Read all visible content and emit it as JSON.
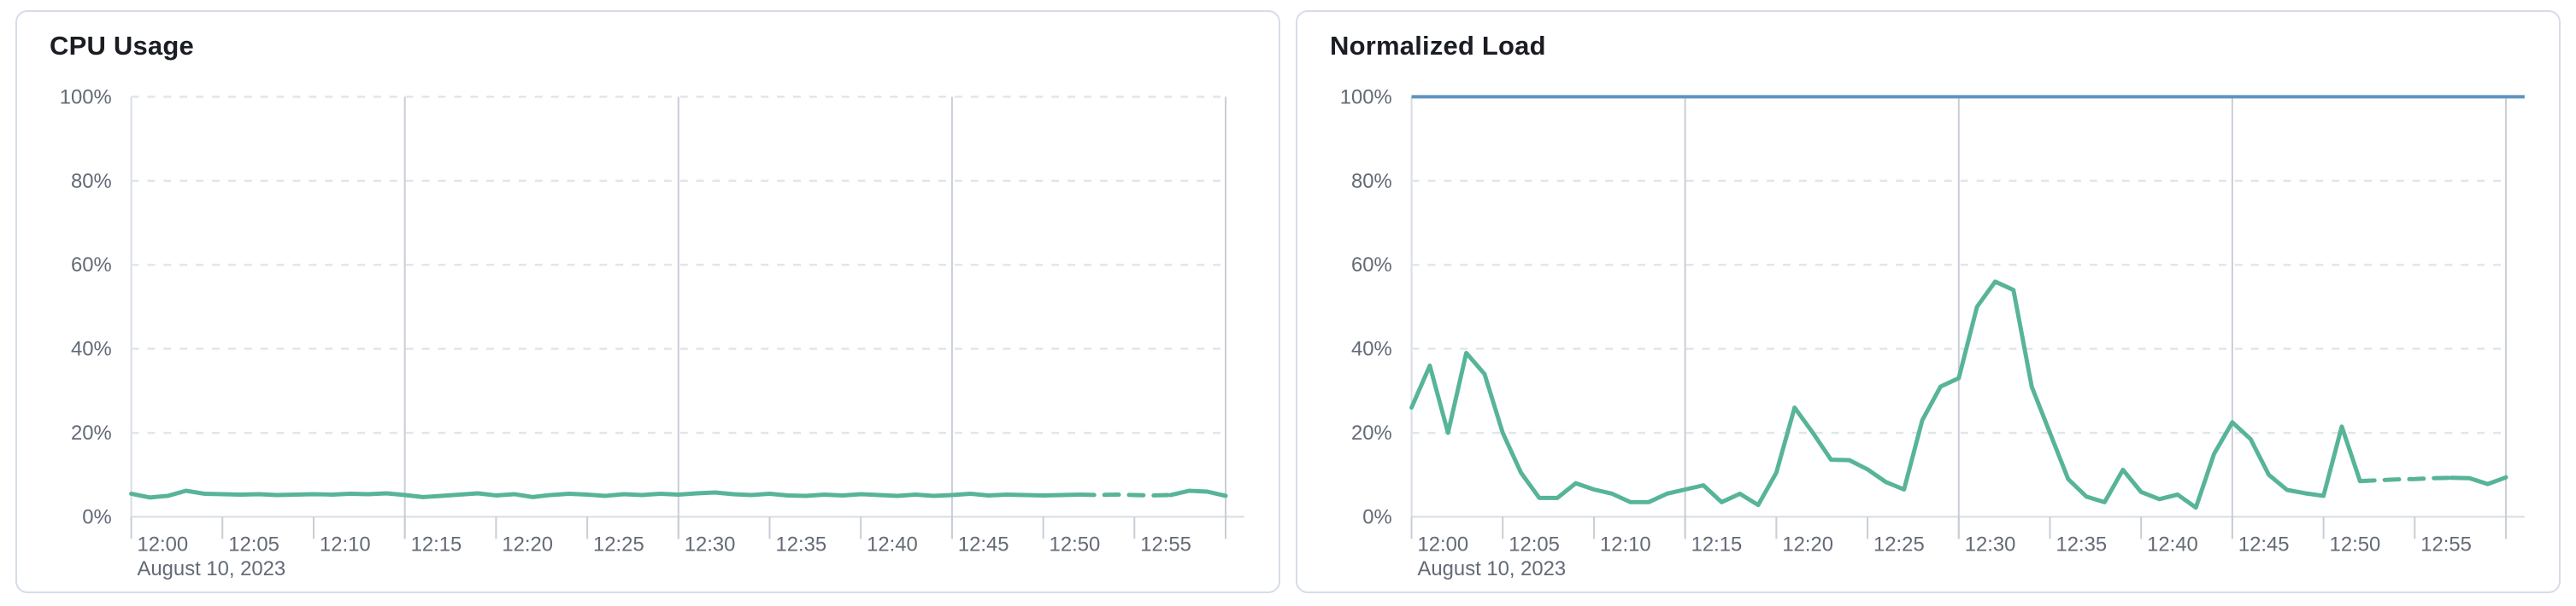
{
  "theme": {
    "series_green": "#57b499",
    "reference_blue": "#6092c0",
    "grid_dashed": "#e1e5ee",
    "grid_major": "#c9cdd6",
    "axis_line": "#d8dce5",
    "tick_label": "#636a76",
    "title_color": "#1a1d23",
    "card_border": "#d6dce8",
    "background": "#ffffff"
  },
  "panels": [
    {
      "title": "CPU Usage"
    },
    {
      "title": "Normalized Load"
    }
  ],
  "chart_data": [
    {
      "type": "line",
      "title": "CPU Usage",
      "date_annotation": "August 10, 2023",
      "x_axis": {
        "start": "12:00",
        "end": "13:00",
        "interval_minutes": 1,
        "tick_labels": [
          "12:00",
          "12:05",
          "12:10",
          "12:15",
          "12:20",
          "12:25",
          "12:30",
          "12:35",
          "12:40",
          "12:45",
          "12:50",
          "12:55"
        ],
        "major_gridlines_minutes": [
          15,
          30,
          45,
          60
        ]
      },
      "y_axis": {
        "min": 0,
        "max": 100,
        "unit": "%",
        "tick_labels": [
          "0%",
          "20%",
          "40%",
          "60%",
          "80%",
          "100%"
        ]
      },
      "grid": true,
      "legend": false,
      "series": [
        {
          "name": "cpu-usage",
          "color": "#57b499",
          "dashed_range_minutes": [
            52,
            57
          ],
          "values_percent": [
            5.5,
            4.6,
            5,
            6.2,
            5.5,
            5.4,
            5.3,
            5.4,
            5.2,
            5.3,
            5.4,
            5.3,
            5.5,
            5.4,
            5.6,
            5.2,
            4.7,
            5,
            5.3,
            5.6,
            5.1,
            5.4,
            4.7,
            5.2,
            5.5,
            5.3,
            5,
            5.4,
            5.2,
            5.5,
            5.3,
            5.6,
            5.8,
            5.4,
            5.2,
            5.5,
            5.1,
            5,
            5.3,
            5.1,
            5.4,
            5.2,
            5,
            5.3,
            5,
            5.2,
            5.5,
            5.1,
            5.3,
            5.2,
            5.1,
            5.2,
            5.3,
            5.2,
            5.3,
            5.2,
            5.1,
            5.2,
            6.2,
            6,
            5
          ]
        }
      ]
    },
    {
      "type": "line",
      "title": "Normalized Load",
      "date_annotation": "August 10, 2023",
      "x_axis": {
        "start": "12:00",
        "end": "13:00",
        "interval_minutes": 1,
        "tick_labels": [
          "12:00",
          "12:05",
          "12:10",
          "12:15",
          "12:20",
          "12:25",
          "12:30",
          "12:35",
          "12:40",
          "12:45",
          "12:50",
          "12:55"
        ],
        "major_gridlines_minutes": [
          15,
          30,
          45,
          60
        ]
      },
      "y_axis": {
        "min": 0,
        "max": 100,
        "unit": "%",
        "tick_labels": [
          "0%",
          "20%",
          "40%",
          "60%",
          "80%",
          "100%"
        ]
      },
      "grid": true,
      "legend": false,
      "series": [
        {
          "name": "normalized-load",
          "color": "#57b499",
          "dashed_range_minutes": [
            52,
            57
          ],
          "values_percent": [
            26,
            36,
            20,
            39,
            34,
            20,
            10.5,
            4.5,
            4.5,
            8,
            6.5,
            5.5,
            3.5,
            3.5,
            5.5,
            6.5,
            7.5,
            3.5,
            5.5,
            2.8,
            10.5,
            26,
            20,
            13.6,
            13.5,
            11.3,
            8.3,
            6.5,
            23,
            31,
            33,
            50,
            56,
            54,
            31,
            20,
            9,
            4.8,
            3.5,
            11.2,
            5.9,
            4.2,
            5.3,
            2.2,
            15,
            22.5,
            18.5,
            10,
            6.4,
            5.6,
            5,
            21.5,
            8.5,
            8.7,
            8.9,
            9,
            9.2,
            9.3,
            9.2,
            7.8,
            9.4
          ]
        },
        {
          "name": "limit-reference-line",
          "color": "#6092c0",
          "constant_percent": 100
        }
      ]
    }
  ]
}
